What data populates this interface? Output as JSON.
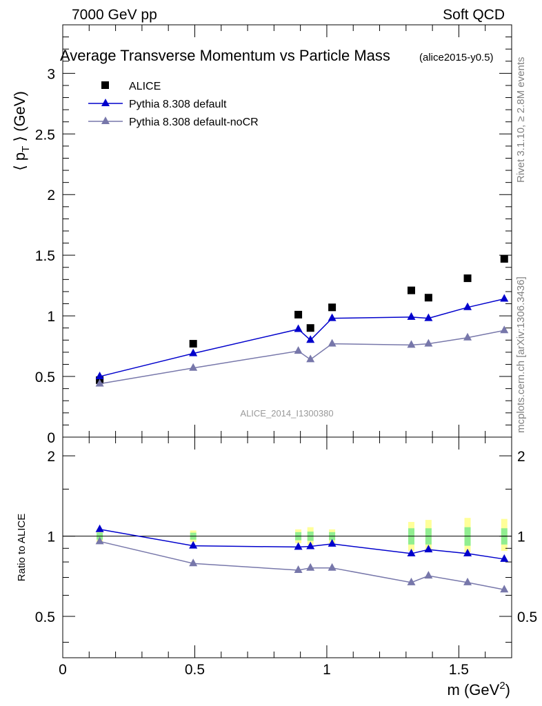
{
  "header": {
    "left": "7000 GeV pp",
    "right": "Soft QCD"
  },
  "side": {
    "rivet": "Rivet 3.1.10, ≥ 2.8M events",
    "mcplots": "mcplots.cern.ch [arXiv:1306.3436]"
  },
  "watermark": "ALICE_2014_I1300380",
  "chart_data": [
    {
      "type": "scatter",
      "title": "Average Transverse Momentum vs Particle Mass",
      "subtitle": "(alice2015-y0.5)",
      "xlabel": "m (GeV²)",
      "ylabel": "⟨ pT ⟩ (GeV)",
      "xlim": [
        0,
        1.7
      ],
      "ylim": [
        0,
        3.4
      ],
      "x_ticks": [
        "0",
        "0.5",
        "1",
        "1.5"
      ],
      "y_ticks": [
        "0",
        "0.5",
        "1",
        "1.5",
        "2",
        "2.5",
        "3"
      ],
      "legend_position": "top-left",
      "x": [
        0.14,
        0.494,
        0.892,
        0.938,
        1.02,
        1.32,
        1.385,
        1.533,
        1.672
      ],
      "series": [
        {
          "name": "ALICE",
          "color": "#000000",
          "marker": "square",
          "values": [
            0.47,
            0.77,
            1.01,
            0.9,
            1.07,
            1.21,
            1.15,
            1.31,
            1.47
          ]
        },
        {
          "name": "Pythia 8.308 default",
          "color": "#0000cc",
          "marker": "triangle",
          "values": [
            0.5,
            0.69,
            0.89,
            0.8,
            0.98,
            0.99,
            0.98,
            1.07,
            1.14
          ]
        },
        {
          "name": "Pythia 8.308 default-noCR",
          "color": "#7777aa",
          "marker": "triangle",
          "values": [
            0.44,
            0.57,
            0.71,
            0.64,
            0.77,
            0.76,
            0.77,
            0.82,
            0.88
          ]
        }
      ]
    },
    {
      "type": "line",
      "ylabel": "Ratio to ALICE",
      "xlim": [
        0,
        1.7
      ],
      "ylim": [
        0.35,
        2.35
      ],
      "y_scale": "log",
      "y_ticks": [
        "0.5",
        "1",
        "2"
      ],
      "reference_line": 1,
      "x": [
        0.14,
        0.494,
        0.892,
        0.938,
        1.02,
        1.32,
        1.385,
        1.533,
        1.672
      ],
      "series": [
        {
          "name": "Pythia 8.308 default",
          "color": "#0000cc",
          "values": [
            1.06,
            0.92,
            0.91,
            0.915,
            0.935,
            0.86,
            0.89,
            0.86,
            0.82
          ]
        },
        {
          "name": "Pythia 8.308 default-noCR",
          "color": "#7777aa",
          "values": [
            0.955,
            0.79,
            0.745,
            0.76,
            0.76,
            0.67,
            0.71,
            0.67,
            0.63
          ]
        }
      ],
      "uncertainty": {
        "stat_color": "#90ee90",
        "syst_color": "#ffff99",
        "inner_low": [
          0.97,
          0.97,
          0.965,
          0.96,
          0.965,
          0.93,
          0.93,
          0.92,
          0.93
        ],
        "inner_high": [
          1.03,
          1.03,
          1.035,
          1.04,
          1.035,
          1.07,
          1.07,
          1.08,
          1.07
        ],
        "outer_low": [
          0.94,
          0.95,
          0.94,
          0.93,
          0.94,
          0.88,
          0.88,
          0.87,
          0.88
        ],
        "outer_high": [
          1.06,
          1.05,
          1.06,
          1.08,
          1.06,
          1.13,
          1.15,
          1.17,
          1.16
        ]
      }
    }
  ]
}
